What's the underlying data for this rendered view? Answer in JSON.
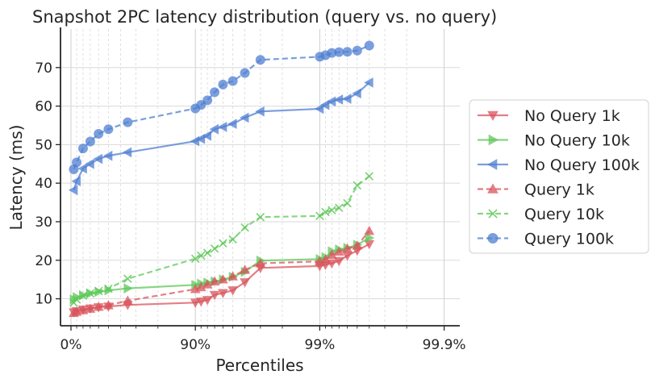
{
  "chart_data": {
    "type": "line",
    "title": "Snapshot 2PC latency distribution (query vs. no query)",
    "xlabel": "Percentiles",
    "ylabel": "Latency (ms)",
    "x_scale": "log-percentile (nines)",
    "x_ticks": [
      "0%",
      "90%",
      "99%",
      "99.9%"
    ],
    "y_ticks": [
      10,
      20,
      30,
      40,
      50,
      60,
      70
    ],
    "ylim": [
      3,
      80
    ],
    "grid": true,
    "legend_position": "right",
    "x": [
      5,
      10,
      20,
      30,
      40,
      50,
      65,
      90,
      91,
      92,
      93,
      94,
      95,
      96,
      97,
      99,
      99.1,
      99.2,
      99.3,
      99.4,
      99.5,
      99.6,
      99.7,
      99.8,
      99.9
    ],
    "series": [
      {
        "name": "No Query 1k",
        "marker": "triangle-down",
        "dash": false,
        "color": "#d9545c",
        "values": [
          6.5,
          6.8,
          7.2,
          7.5,
          7.8,
          8.0,
          8.4,
          9.0,
          9.3,
          9.7,
          11.0,
          11.5,
          12.2,
          14.3,
          18.0,
          18.5,
          18.8,
          19.2,
          19.8,
          21.2,
          22.5,
          24.2,
          null,
          null,
          null
        ]
      },
      {
        "name": "No Query 10k",
        "marker": "triangle-right",
        "dash": false,
        "color": "#5fc85a",
        "values": [
          9.8,
          10.4,
          10.9,
          11.4,
          11.8,
          12.2,
          12.7,
          13.6,
          13.9,
          14.2,
          14.5,
          15.0,
          15.7,
          17.0,
          19.9,
          20.3,
          20.8,
          22.3,
          22.8,
          23.2,
          24.0,
          25.8,
          null,
          null,
          null
        ]
      },
      {
        "name": "No Query 100k",
        "marker": "triangle-left",
        "dash": false,
        "color": "#4f7fd2",
        "values": [
          38.2,
          40.5,
          43.8,
          45.0,
          46.3,
          47.1,
          48.0,
          50.9,
          51.5,
          52.3,
          54.0,
          54.6,
          55.4,
          57.0,
          58.6,
          59.3,
          60.3,
          61.2,
          61.7,
          61.9,
          63.3,
          66.1,
          null,
          null,
          null
        ]
      },
      {
        "name": "Query 1k",
        "marker": "triangle-up",
        "dash": true,
        "color": "#d9545c",
        "values": [
          6.3,
          6.6,
          7.0,
          7.4,
          7.9,
          8.3,
          9.5,
          12.5,
          13.0,
          13.7,
          14.5,
          15.0,
          15.8,
          17.5,
          19.2,
          19.7,
          20.2,
          21.4,
          22.2,
          23.0,
          23.8,
          27.6,
          null,
          null,
          null
        ]
      },
      {
        "name": "Query 10k",
        "marker": "x",
        "dash": true,
        "color": "#5fc85a",
        "values": [
          9.0,
          9.8,
          10.8,
          11.4,
          12.0,
          12.6,
          15.2,
          20.4,
          21.2,
          21.9,
          23.0,
          24.4,
          25.4,
          28.5,
          31.2,
          31.5,
          32.5,
          33.0,
          33.6,
          34.8,
          39.4,
          41.8,
          null,
          null,
          null
        ]
      },
      {
        "name": "Query 100k",
        "marker": "circle",
        "dash": true,
        "color": "#4f7fd2",
        "values": [
          43.6,
          45.4,
          49.0,
          50.8,
          52.8,
          54.0,
          55.8,
          59.4,
          60.3,
          61.5,
          63.6,
          65.6,
          66.5,
          68.6,
          72.0,
          72.8,
          73.2,
          73.8,
          74.0,
          74.1,
          74.4,
          75.7,
          null,
          null,
          null
        ]
      }
    ]
  }
}
